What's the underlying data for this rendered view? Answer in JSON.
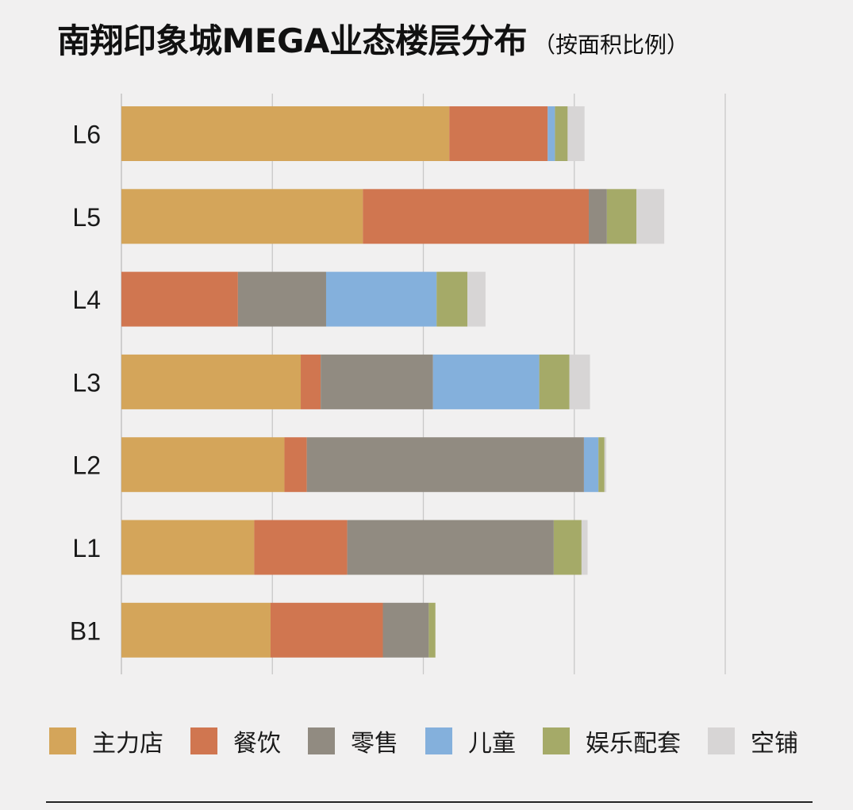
{
  "title": {
    "main": "南翔印象城MEGA业态楼层分布",
    "sub": "（按面积比例）"
  },
  "chart_data": {
    "type": "bar",
    "orientation": "horizontal",
    "stacked": true,
    "title": "南翔印象城MEGA业态楼层分布（按面积比例）",
    "xlabel": "",
    "ylabel": "",
    "xlim": [
      0,
      100
    ],
    "x_gridlines": [
      0,
      25,
      50,
      75,
      100
    ],
    "x_tick_labels_shown": false,
    "grid": true,
    "legend_position": "bottom",
    "categories": [
      "L6",
      "L5",
      "L4",
      "L3",
      "L2",
      "L1",
      "B1"
    ],
    "series": [
      {
        "name": "主力店",
        "color": "#d4a55a",
        "values": [
          54.3,
          40.0,
          0,
          29.7,
          27.0,
          22.0,
          24.7
        ]
      },
      {
        "name": "餐饮",
        "color": "#d07650",
        "values": [
          16.3,
          37.4,
          19.3,
          3.3,
          3.7,
          15.4,
          18.6
        ]
      },
      {
        "name": "零售",
        "color": "#918b81",
        "values": [
          0,
          3.0,
          14.6,
          18.6,
          45.9,
          34.2,
          7.6
        ]
      },
      {
        "name": "儿童",
        "color": "#84b0dc",
        "values": [
          1.2,
          0,
          18.3,
          17.6,
          2.4,
          0,
          0
        ]
      },
      {
        "name": "娱乐配套",
        "color": "#a5aa68",
        "values": [
          2.1,
          4.9,
          5.1,
          5.0,
          1.0,
          4.6,
          1.1
        ]
      },
      {
        "name": "空铺",
        "color": "#d7d5d5",
        "values": [
          2.8,
          4.6,
          3.0,
          3.4,
          0.3,
          1.0,
          0
        ]
      }
    ]
  }
}
